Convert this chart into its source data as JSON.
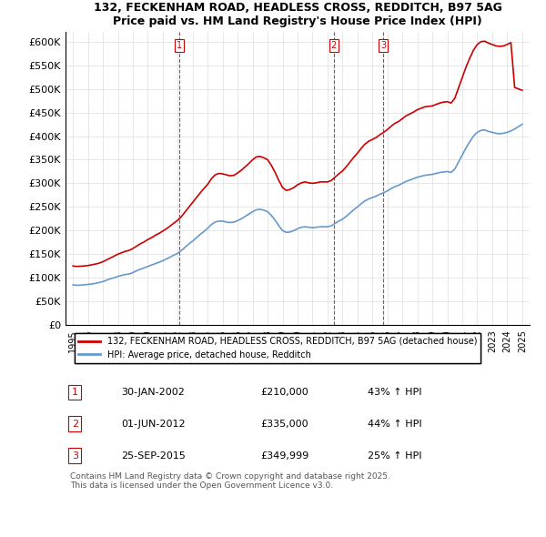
{
  "title": "132, FECKENHAM ROAD, HEADLESS CROSS, REDDITCH, B97 5AG",
  "subtitle": "Price paid vs. HM Land Registry's House Price Index (HPI)",
  "legend_label_red": "132, FECKENHAM ROAD, HEADLESS CROSS, REDDITCH, B97 5AG (detached house)",
  "legend_label_blue": "HPI: Average price, detached house, Redditch",
  "footer": "Contains HM Land Registry data © Crown copyright and database right 2025.\nThis data is licensed under the Open Government Licence v3.0.",
  "sales": [
    {
      "label": "1",
      "date": "30-JAN-2002",
      "price": 210000,
      "hpi_pct": "43% ↑ HPI",
      "x": 2002.08
    },
    {
      "label": "2",
      "date": "01-JUN-2012",
      "price": 335000,
      "hpi_pct": "44% ↑ HPI",
      "x": 2012.42
    },
    {
      "label": "3",
      "date": "25-SEP-2015",
      "price": 349999,
      "hpi_pct": "25% ↑ HPI",
      "x": 2015.73
    }
  ],
  "ylim": [
    0,
    620000
  ],
  "yticks": [
    0,
    50000,
    100000,
    150000,
    200000,
    250000,
    300000,
    350000,
    400000,
    450000,
    500000,
    550000,
    600000
  ],
  "ytick_labels": [
    "£0",
    "£50K",
    "£100K",
    "£150K",
    "£200K",
    "£250K",
    "£300K",
    "£350K",
    "£400K",
    "£450K",
    "£500K",
    "£550K",
    "£600K"
  ],
  "xlim": [
    1994.5,
    2025.5
  ],
  "red_color": "#cc0000",
  "blue_color": "#6699cc",
  "background_color": "#ffffff",
  "grid_color": "#dddddd",
  "hpi_data": {
    "x": [
      1995.0,
      1995.25,
      1995.5,
      1995.75,
      1996.0,
      1996.25,
      1996.5,
      1996.75,
      1997.0,
      1997.25,
      1997.5,
      1997.75,
      1998.0,
      1998.25,
      1998.5,
      1998.75,
      1999.0,
      1999.25,
      1999.5,
      1999.75,
      2000.0,
      2000.25,
      2000.5,
      2000.75,
      2001.0,
      2001.25,
      2001.5,
      2001.75,
      2002.0,
      2002.25,
      2002.5,
      2002.75,
      2003.0,
      2003.25,
      2003.5,
      2003.75,
      2004.0,
      2004.25,
      2004.5,
      2004.75,
      2005.0,
      2005.25,
      2005.5,
      2005.75,
      2006.0,
      2006.25,
      2006.5,
      2006.75,
      2007.0,
      2007.25,
      2007.5,
      2007.75,
      2008.0,
      2008.25,
      2008.5,
      2008.75,
      2009.0,
      2009.25,
      2009.5,
      2009.75,
      2010.0,
      2010.25,
      2010.5,
      2010.75,
      2011.0,
      2011.25,
      2011.5,
      2011.75,
      2012.0,
      2012.25,
      2012.5,
      2012.75,
      2013.0,
      2013.25,
      2013.5,
      2013.75,
      2014.0,
      2014.25,
      2014.5,
      2014.75,
      2015.0,
      2015.25,
      2015.5,
      2015.75,
      2016.0,
      2016.25,
      2016.5,
      2016.75,
      2017.0,
      2017.25,
      2017.5,
      2017.75,
      2018.0,
      2018.25,
      2018.5,
      2018.75,
      2019.0,
      2019.25,
      2019.5,
      2019.75,
      2020.0,
      2020.25,
      2020.5,
      2020.75,
      2021.0,
      2021.25,
      2021.5,
      2021.75,
      2022.0,
      2022.25,
      2022.5,
      2022.75,
      2023.0,
      2023.25,
      2023.5,
      2023.75,
      2024.0,
      2024.25,
      2024.5,
      2024.75,
      2025.0
    ],
    "y": [
      85000,
      84000,
      84500,
      85000,
      86000,
      87000,
      88000,
      90000,
      92000,
      95000,
      98000,
      100000,
      103000,
      105000,
      107000,
      108000,
      111000,
      115000,
      118000,
      121000,
      124000,
      127000,
      130000,
      133000,
      136000,
      140000,
      144000,
      148000,
      152000,
      158000,
      165000,
      172000,
      178000,
      185000,
      192000,
      198000,
      205000,
      213000,
      218000,
      220000,
      220000,
      218000,
      217000,
      218000,
      221000,
      225000,
      230000,
      235000,
      240000,
      244000,
      245000,
      243000,
      240000,
      232000,
      222000,
      210000,
      200000,
      196000,
      197000,
      200000,
      204000,
      207000,
      208000,
      207000,
      206000,
      207000,
      208000,
      208000,
      208000,
      210000,
      215000,
      220000,
      224000,
      230000,
      237000,
      244000,
      250000,
      257000,
      263000,
      267000,
      270000,
      273000,
      277000,
      280000,
      284000,
      289000,
      293000,
      296000,
      300000,
      304000,
      307000,
      310000,
      313000,
      315000,
      317000,
      318000,
      319000,
      321000,
      323000,
      324000,
      325000,
      323000,
      330000,
      345000,
      360000,
      375000,
      388000,
      400000,
      408000,
      412000,
      413000,
      410000,
      408000,
      406000,
      405000,
      406000,
      408000,
      411000,
      415000,
      420000,
      425000
    ]
  },
  "property_data": {
    "x": [
      1995.0,
      1995.25,
      1995.5,
      1995.75,
      1996.0,
      1996.25,
      1996.5,
      1996.75,
      1997.0,
      1997.25,
      1997.5,
      1997.75,
      1998.0,
      1998.25,
      1998.5,
      1998.75,
      1999.0,
      1999.25,
      1999.5,
      1999.75,
      2000.0,
      2000.25,
      2000.5,
      2000.75,
      2001.0,
      2001.25,
      2001.5,
      2001.75,
      2002.0,
      2002.25,
      2002.5,
      2002.75,
      2003.0,
      2003.25,
      2003.5,
      2003.75,
      2004.0,
      2004.25,
      2004.5,
      2004.75,
      2005.0,
      2005.25,
      2005.5,
      2005.75,
      2006.0,
      2006.25,
      2006.5,
      2006.75,
      2007.0,
      2007.25,
      2007.5,
      2007.75,
      2008.0,
      2008.25,
      2008.5,
      2008.75,
      2009.0,
      2009.25,
      2009.5,
      2009.75,
      2010.0,
      2010.25,
      2010.5,
      2010.75,
      2011.0,
      2011.25,
      2011.5,
      2011.75,
      2012.0,
      2012.25,
      2012.5,
      2012.75,
      2013.0,
      2013.25,
      2013.5,
      2013.75,
      2014.0,
      2014.25,
      2014.5,
      2014.75,
      2015.0,
      2015.25,
      2015.5,
      2015.75,
      2016.0,
      2016.25,
      2016.5,
      2016.75,
      2017.0,
      2017.25,
      2017.5,
      2017.75,
      2018.0,
      2018.25,
      2018.5,
      2018.75,
      2019.0,
      2019.25,
      2019.5,
      2019.75,
      2020.0,
      2020.25,
      2020.5,
      2020.75,
      2021.0,
      2021.25,
      2021.5,
      2021.75,
      2022.0,
      2022.25,
      2022.5,
      2022.75,
      2023.0,
      2023.25,
      2023.5,
      2023.75,
      2024.0,
      2024.25,
      2024.5,
      2024.75,
      2025.0
    ],
    "y": [
      125000,
      124000,
      124500,
      125000,
      126000,
      127500,
      129000,
      131000,
      134000,
      138000,
      142000,
      146000,
      150000,
      153000,
      156000,
      158000,
      162000,
      167000,
      172000,
      176000,
      181000,
      185000,
      190000,
      194000,
      199000,
      204000,
      210000,
      216000,
      222000,
      230000,
      240000,
      250000,
      260000,
      270000,
      280000,
      289000,
      298000,
      310000,
      318000,
      321000,
      320000,
      318000,
      316000,
      317000,
      322000,
      328000,
      335000,
      342000,
      350000,
      356000,
      357000,
      354000,
      350000,
      338000,
      323000,
      306000,
      291000,
      285000,
      287000,
      291000,
      297000,
      301000,
      303000,
      301000,
      300000,
      301000,
      303000,
      303000,
      303000,
      306000,
      313000,
      320000,
      326000,
      335000,
      345000,
      355000,
      364000,
      374000,
      383000,
      389000,
      393000,
      397000,
      403000,
      408000,
      414000,
      421000,
      427000,
      431000,
      437000,
      443000,
      447000,
      451000,
      456000,
      459000,
      462000,
      463000,
      464000,
      467000,
      470000,
      472000,
      473000,
      470000,
      480000,
      502000,
      524000,
      546000,
      565000,
      582000,
      594000,
      600000,
      601000,
      597000,
      594000,
      591000,
      590000,
      591000,
      594000,
      598000,
      503000,
      500000,
      497000
    ]
  }
}
